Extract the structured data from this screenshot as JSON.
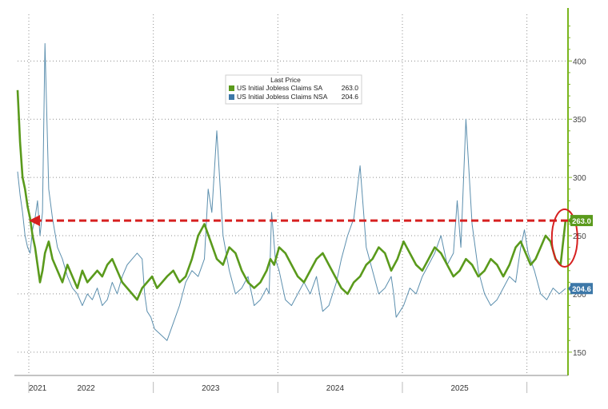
{
  "chart_data": {
    "type": "line",
    "title": "",
    "xlabel": "",
    "ylabel": "",
    "x_tick_labels": [
      "2021",
      "2022",
      "2023",
      "2024",
      "2025"
    ],
    "y_tick_labels": [
      "150",
      "200",
      "250",
      "300",
      "350",
      "400"
    ],
    "ylim": [
      130,
      440
    ],
    "xlim": [
      2021.0,
      2025.42
    ],
    "grid": true,
    "legend": {
      "title": "Last Price",
      "placement": "top-center",
      "entries": [
        {
          "name": "US Initial Jobless Claims SA",
          "value": "263.0"
        },
        {
          "name": "US Initial Jobless Claims NSA",
          "value": "204.6"
        }
      ]
    },
    "last_value_labels": {
      "sa": "263.0",
      "nsa": "204.6"
    },
    "annotations": {
      "dashed_arrow": {
        "level": 263.0,
        "x_from": 2025.42,
        "x_to": 2021.09,
        "color": "#d62020"
      },
      "circle_highlight": {
        "x": 2025.38,
        "y": 248,
        "color": "#d62020"
      }
    },
    "colors": {
      "sa": "#5a9a1c",
      "nsa": "#5c8fae",
      "grid": "#8f8f8f",
      "axis": "#7ab51d",
      "sa_box": "#5a9a1c",
      "nsa_box": "#3d78a8",
      "legend_sa_swatch": "#5a9a1c",
      "legend_nsa_swatch": "#3d78a8"
    },
    "series": [
      {
        "name": "US Initial Jobless Claims SA",
        "x": [
          2021.0,
          2021.02,
          2021.04,
          2021.06,
          2021.08,
          2021.1,
          2021.12,
          2021.14,
          2021.16,
          2021.18,
          2021.2,
          2021.22,
          2021.25,
          2021.28,
          2021.32,
          2021.36,
          2021.4,
          2021.44,
          2021.48,
          2021.52,
          2021.56,
          2021.6,
          2021.64,
          2021.68,
          2021.72,
          2021.76,
          2021.8,
          2021.84,
          2021.88,
          2021.92,
          2021.96,
          2022.0,
          2022.04,
          2022.08,
          2022.12,
          2022.16,
          2022.2,
          2022.25,
          2022.3,
          2022.35,
          2022.4,
          2022.45,
          2022.5,
          2022.55,
          2022.6,
          2022.65,
          2022.7,
          2022.75,
          2022.8,
          2022.85,
          2022.9,
          2022.95,
          2023.0,
          2023.03,
          2023.06,
          2023.1,
          2023.15,
          2023.2,
          2023.25,
          2023.3,
          2023.35,
          2023.4,
          2023.45,
          2023.5,
          2023.55,
          2023.6,
          2023.65,
          2023.7,
          2023.75,
          2023.8,
          2023.85,
          2023.9,
          2023.95,
          2024.0,
          2024.05,
          2024.1,
          2024.15,
          2024.2,
          2024.25,
          2024.3,
          2024.35,
          2024.4,
          2024.45,
          2024.5,
          2024.55,
          2024.6,
          2024.65,
          2024.7,
          2024.75,
          2024.8,
          2024.85,
          2024.9,
          2024.95,
          2025.0,
          2025.04,
          2025.08,
          2025.12,
          2025.16,
          2025.2,
          2025.24,
          2025.28,
          2025.32,
          2025.36,
          2025.4
        ],
        "y": [
          375,
          330,
          300,
          290,
          275,
          265,
          250,
          240,
          225,
          210,
          220,
          235,
          245,
          230,
          220,
          210,
          225,
          215,
          205,
          220,
          210,
          215,
          220,
          215,
          225,
          230,
          220,
          210,
          205,
          200,
          195,
          205,
          210,
          215,
          205,
          210,
          215,
          220,
          210,
          215,
          230,
          250,
          260,
          245,
          230,
          225,
          240,
          235,
          220,
          210,
          205,
          210,
          220,
          230,
          225,
          240,
          235,
          225,
          215,
          210,
          220,
          230,
          235,
          225,
          215,
          205,
          200,
          210,
          215,
          225,
          230,
          240,
          235,
          220,
          230,
          245,
          235,
          225,
          220,
          230,
          240,
          235,
          225,
          215,
          220,
          230,
          225,
          215,
          220,
          230,
          225,
          215,
          225,
          240,
          245,
          235,
          225,
          230,
          240,
          250,
          245,
          230,
          225,
          263
        ]
      },
      {
        "name": "US Initial Jobless Claims NSA",
        "x": [
          2021.0,
          2021.02,
          2021.04,
          2021.06,
          2021.08,
          2021.1,
          2021.12,
          2021.14,
          2021.16,
          2021.18,
          2021.2,
          2021.22,
          2021.25,
          2021.28,
          2021.32,
          2021.36,
          2021.4,
          2021.44,
          2021.48,
          2021.52,
          2021.56,
          2021.6,
          2021.64,
          2021.68,
          2021.72,
          2021.76,
          2021.8,
          2021.84,
          2021.88,
          2021.92,
          2021.96,
          2022.0,
          2022.02,
          2022.04,
          2022.07,
          2022.1,
          2022.15,
          2022.2,
          2022.25,
          2022.3,
          2022.35,
          2022.4,
          2022.45,
          2022.5,
          2022.53,
          2022.56,
          2022.6,
          2022.65,
          2022.7,
          2022.75,
          2022.8,
          2022.85,
          2022.9,
          2022.95,
          2023.0,
          2023.02,
          2023.04,
          2023.07,
          2023.1,
          2023.15,
          2023.2,
          2023.25,
          2023.3,
          2023.35,
          2023.4,
          2023.45,
          2023.5,
          2023.53,
          2023.56,
          2023.6,
          2023.65,
          2023.7,
          2023.75,
          2023.8,
          2023.85,
          2023.9,
          2023.95,
          2024.0,
          2024.02,
          2024.04,
          2024.07,
          2024.1,
          2024.15,
          2024.2,
          2024.25,
          2024.3,
          2024.35,
          2024.4,
          2024.45,
          2024.5,
          2024.53,
          2024.56,
          2024.6,
          2024.65,
          2024.7,
          2024.75,
          2024.8,
          2024.85,
          2024.9,
          2024.95,
          2025.0,
          2025.02,
          2025.04,
          2025.07,
          2025.1,
          2025.15,
          2025.2,
          2025.25,
          2025.3,
          2025.35,
          2025.4
        ],
        "y": [
          305,
          285,
          270,
          250,
          240,
          235,
          255,
          265,
          280,
          250,
          270,
          415,
          290,
          265,
          240,
          230,
          215,
          205,
          200,
          190,
          200,
          195,
          205,
          190,
          195,
          210,
          200,
          215,
          225,
          230,
          235,
          230,
          200,
          185,
          180,
          170,
          165,
          160,
          175,
          190,
          210,
          220,
          215,
          230,
          290,
          270,
          340,
          250,
          220,
          200,
          205,
          215,
          190,
          195,
          205,
          200,
          270,
          230,
          220,
          195,
          190,
          200,
          210,
          200,
          215,
          185,
          190,
          200,
          210,
          230,
          250,
          265,
          310,
          240,
          220,
          200,
          205,
          215,
          200,
          180,
          185,
          190,
          205,
          200,
          215,
          225,
          235,
          250,
          225,
          235,
          280,
          240,
          350,
          260,
          220,
          200,
          190,
          195,
          205,
          215,
          210,
          225,
          240,
          255,
          235,
          220,
          200,
          195,
          205,
          200,
          204.6
        ]
      }
    ]
  }
}
